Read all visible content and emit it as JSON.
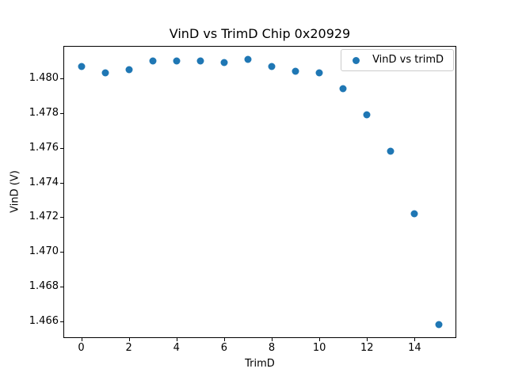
{
  "chart_data": {
    "type": "scatter",
    "title": "VinD vs TrimD Chip 0x20929",
    "xlabel": "TrimD",
    "ylabel": "VinD (V)",
    "legend": {
      "label": "VinD vs trimD",
      "position": "upper right"
    },
    "marker_color": "#1f77b4",
    "grid": false,
    "x": [
      0,
      1,
      2,
      3,
      4,
      5,
      6,
      7,
      8,
      9,
      10,
      11,
      12,
      13,
      14,
      15
    ],
    "y": [
      1.4807,
      1.4803,
      1.4805,
      1.481,
      1.481,
      1.481,
      1.4809,
      1.4811,
      1.4807,
      1.4804,
      1.4803,
      1.4794,
      1.4779,
      1.4758,
      1.4722,
      1.4658
    ],
    "xlim": [
      -0.75,
      15.75
    ],
    "ylim": [
      1.46504,
      1.48187
    ],
    "xticks": [
      0,
      2,
      4,
      6,
      8,
      10,
      12,
      14
    ],
    "xtick_labels": [
      "0",
      "2",
      "4",
      "6",
      "8",
      "10",
      "12",
      "14"
    ],
    "yticks": [
      1.466,
      1.468,
      1.47,
      1.472,
      1.474,
      1.476,
      1.478,
      1.48
    ],
    "ytick_labels": [
      "1.466",
      "1.468",
      "1.470",
      "1.472",
      "1.474",
      "1.476",
      "1.478",
      "1.480"
    ]
  }
}
